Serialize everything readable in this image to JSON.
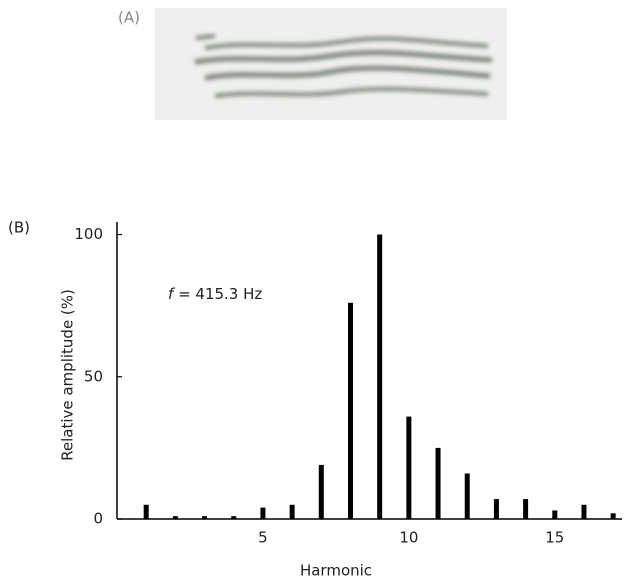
{
  "panel_labels": [
    "(A)",
    "(B)"
  ],
  "chart_data": {
    "type": "bar",
    "x": [
      1,
      2,
      3,
      4,
      5,
      6,
      7,
      8,
      9,
      10,
      11,
      12,
      13,
      14,
      15,
      16,
      17
    ],
    "values": [
      5,
      1,
      1,
      1,
      4,
      5,
      19,
      76,
      100,
      36,
      25,
      16,
      7,
      7,
      3,
      5,
      2
    ],
    "color": "#000000",
    "xlim": [
      0,
      17.2
    ],
    "xticks": [
      5,
      10,
      15
    ],
    "ylim": [
      0,
      103
    ],
    "yticks": [
      0,
      50,
      100
    ],
    "x_label": "Harmonic",
    "y_label": "Relative amplitude (%)",
    "annotation_symbol": "f",
    "annotation": "= 415.3 Hz"
  }
}
